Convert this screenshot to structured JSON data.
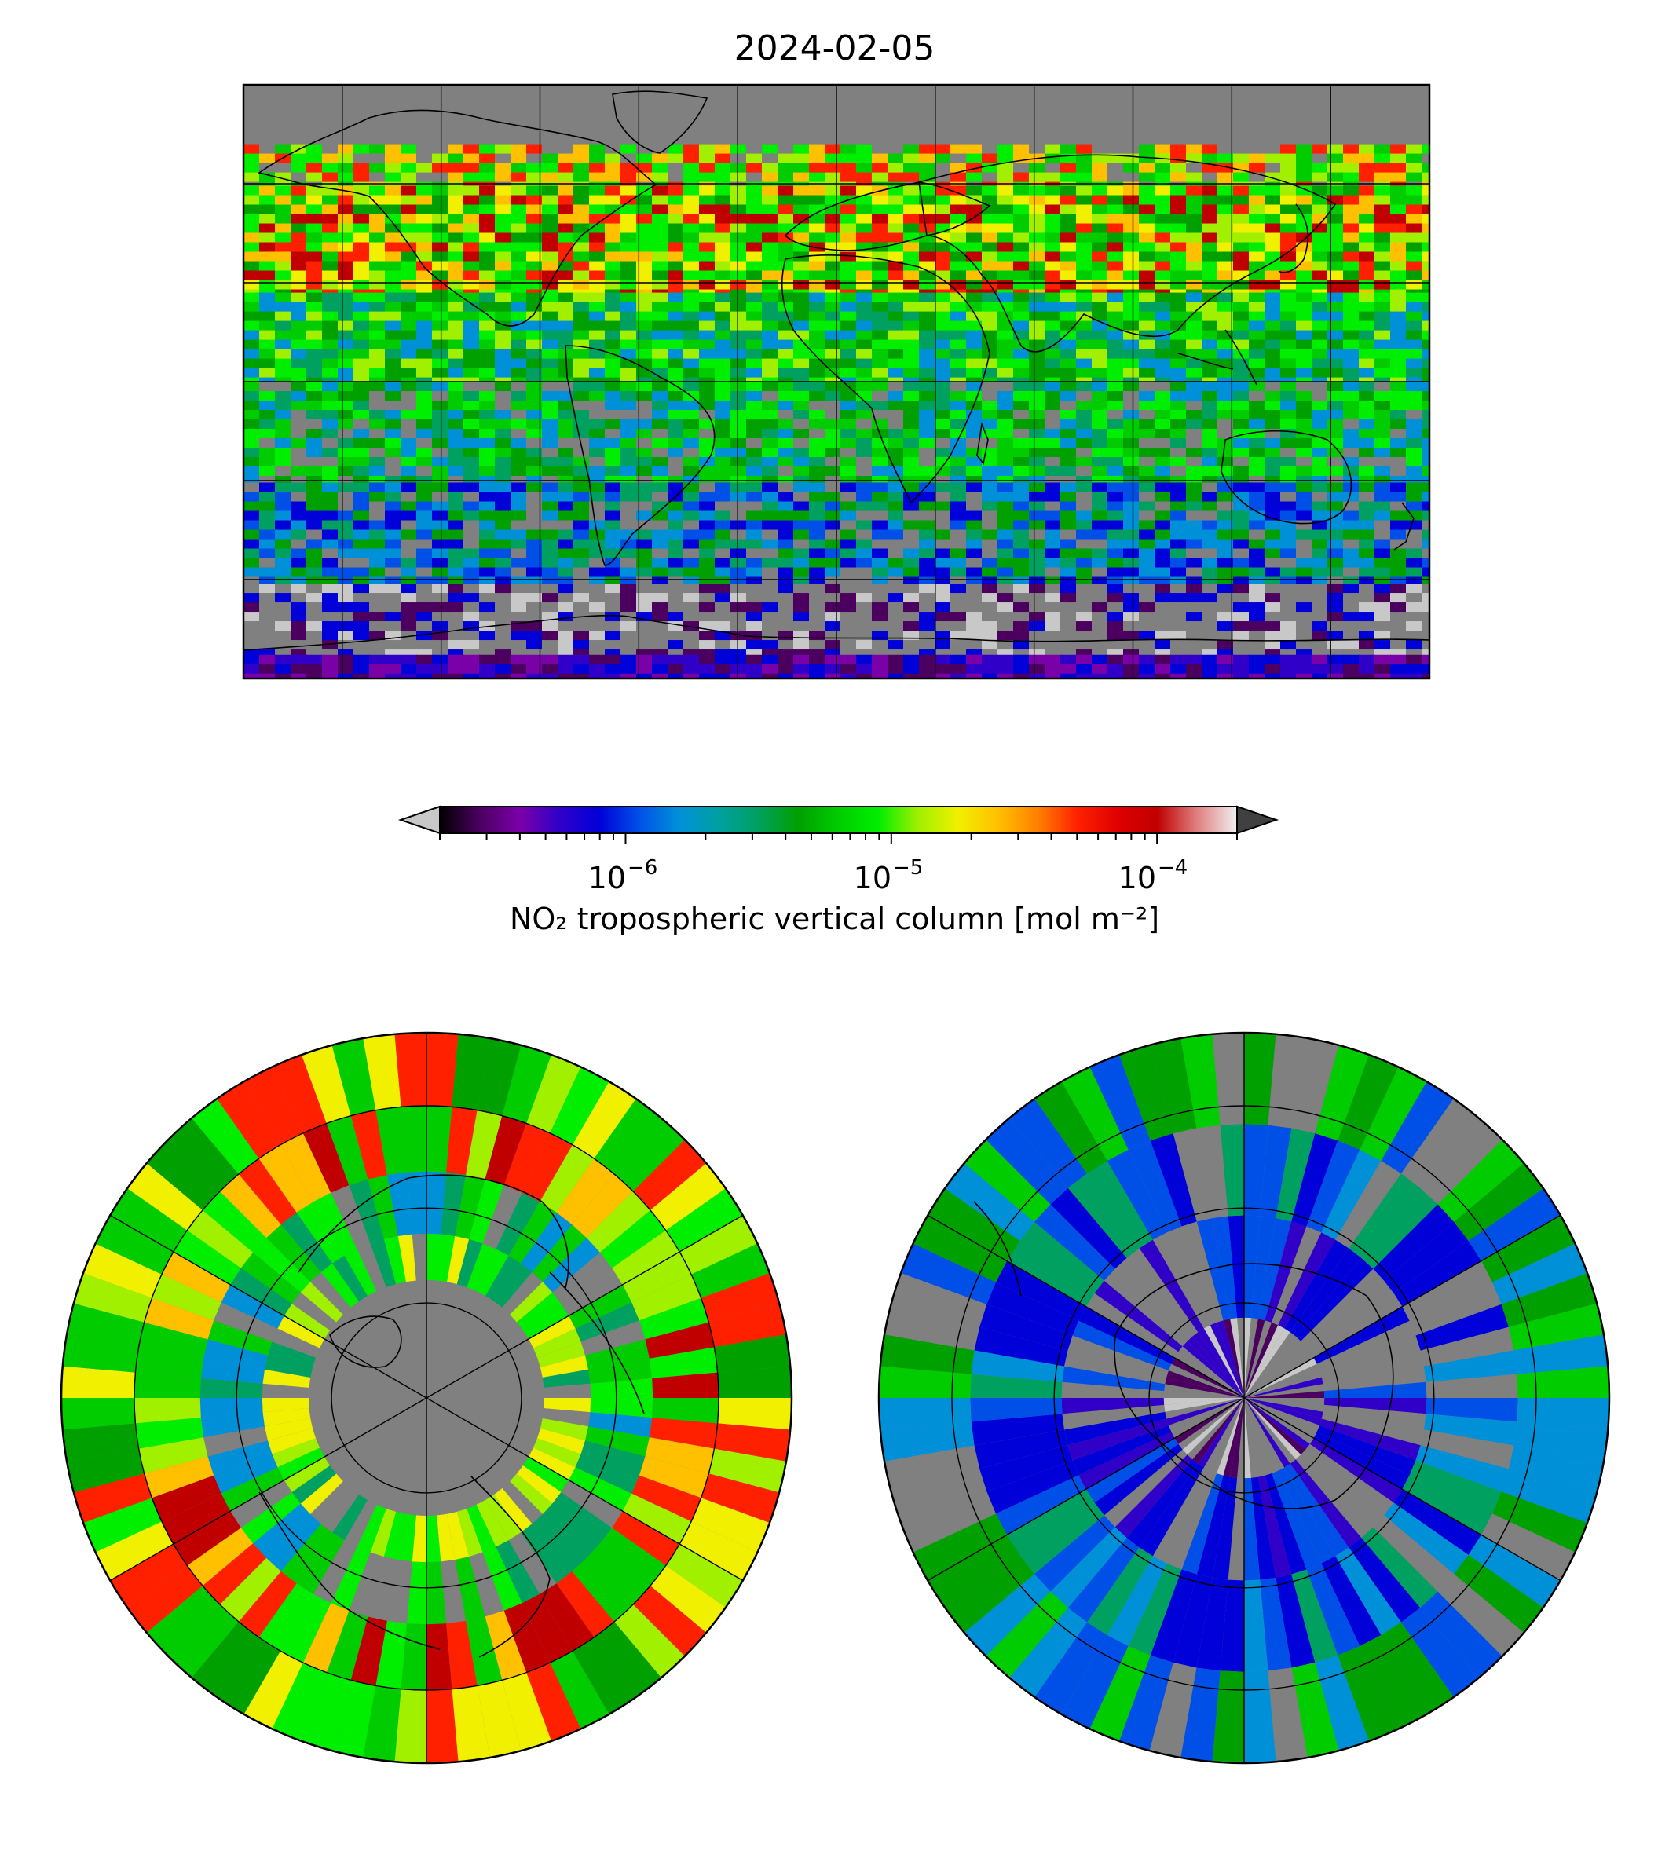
{
  "title": "2024-02-05",
  "colorbar": {
    "label": "NO₂ tropospheric vertical column [mol m⁻²]",
    "scale": "log",
    "range": [
      2e-07,
      0.0002
    ],
    "extend": "both",
    "under_color": "#c8c8c8",
    "over_color": "#404040",
    "colors": [
      "#000000",
      "#4b0060",
      "#7a00a8",
      "#3000c8",
      "#0000d8",
      "#0050e8",
      "#0090d8",
      "#00a0a0",
      "#00a060",
      "#00a000",
      "#00cc00",
      "#00ee00",
      "#a0f000",
      "#f0f000",
      "#ffc000",
      "#ff8000",
      "#ff2000",
      "#e00000",
      "#c00000",
      "#e08080",
      "#f0f0f0"
    ],
    "ticks": [
      {
        "base": "10",
        "exp": "−6",
        "value": 1e-06
      },
      {
        "base": "10",
        "exp": "−5",
        "value": 1e-05
      },
      {
        "base": "10",
        "exp": "−4",
        "value": 0.0001
      }
    ]
  },
  "maps": {
    "global": {
      "projection": "PlateCarree",
      "gridlines": true,
      "lon_lines": [
        -180,
        -150,
        -120,
        -90,
        -60,
        -30,
        0,
        30,
        60,
        90,
        120,
        150,
        180
      ],
      "lat_lines": [
        -90,
        -60,
        -30,
        0,
        30,
        60,
        90
      ],
      "missing_color": "#808080"
    },
    "north_polar": {
      "projection": "NorthPolarStereo",
      "gridlines": true
    },
    "south_polar": {
      "projection": "SouthPolarStereo",
      "gridlines": true
    }
  }
}
